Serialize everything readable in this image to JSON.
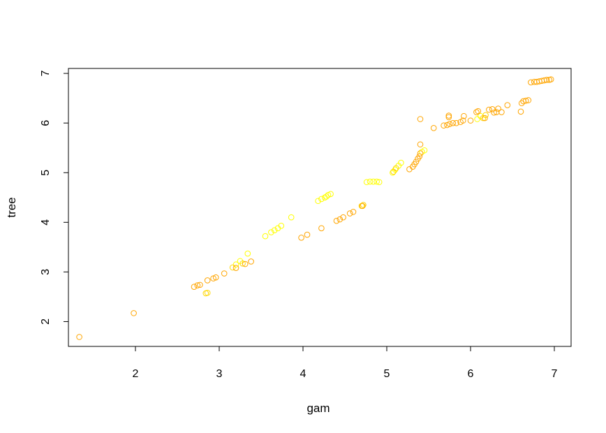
{
  "chart_data": {
    "type": "scatter",
    "title": "",
    "xlabel": "gam",
    "ylabel": "tree",
    "xlim": [
      1.2,
      7.2
    ],
    "ylim": [
      1.5,
      7.1
    ],
    "xticks": [
      "2",
      "3",
      "4",
      "5",
      "6",
      "7"
    ],
    "yticks": [
      "2",
      "3",
      "4",
      "5",
      "6",
      "7"
    ],
    "grid": false,
    "legend": "none",
    "colors": {
      "yellow": "#ffff00",
      "gold": "#ffd700",
      "orange": "#ffa500",
      "dark_orange": "#ff8c00",
      "axis": "#000000"
    },
    "series": [
      {
        "color_key": "yellow",
        "points": [
          [
            3.55,
            3.72
          ],
          [
            3.62,
            3.8
          ],
          [
            3.66,
            3.84
          ],
          [
            3.7,
            3.88
          ],
          [
            3.74,
            3.93
          ],
          [
            3.86,
            4.1
          ],
          [
            3.2,
            3.15
          ],
          [
            3.25,
            3.22
          ],
          [
            3.34,
            3.37
          ],
          [
            4.18,
            4.43
          ],
          [
            4.22,
            4.47
          ],
          [
            4.26,
            4.5
          ],
          [
            4.28,
            4.52
          ],
          [
            4.3,
            4.55
          ],
          [
            4.33,
            4.57
          ],
          [
            4.76,
            4.81
          ],
          [
            4.8,
            4.82
          ],
          [
            4.84,
            4.82
          ],
          [
            4.88,
            4.82
          ],
          [
            4.91,
            4.81
          ],
          [
            5.07,
            5.0
          ],
          [
            5.1,
            5.06
          ],
          [
            5.14,
            5.14
          ],
          [
            5.17,
            5.2
          ],
          [
            5.42,
            5.42
          ],
          [
            5.45,
            5.45
          ],
          [
            6.08,
            6.08
          ],
          [
            6.12,
            6.14
          ]
        ]
      },
      {
        "color_key": "gold",
        "points": [
          [
            2.84,
            2.57
          ],
          [
            2.86,
            2.58
          ],
          [
            3.16,
            3.09
          ],
          [
            3.28,
            3.17
          ],
          [
            4.7,
            4.33
          ],
          [
            4.72,
            4.35
          ],
          [
            5.08,
            5.02
          ],
          [
            5.11,
            5.09
          ],
          [
            6.15,
            6.1
          ],
          [
            6.18,
            6.16
          ]
        ]
      },
      {
        "color_key": "orange",
        "points": [
          [
            1.33,
            1.69
          ],
          [
            1.98,
            2.17
          ],
          [
            2.7,
            2.7
          ],
          [
            2.74,
            2.73
          ],
          [
            2.77,
            2.74
          ],
          [
            2.86,
            2.83
          ],
          [
            2.93,
            2.87
          ],
          [
            2.96,
            2.89
          ],
          [
            3.06,
            2.97
          ],
          [
            3.2,
            3.08
          ],
          [
            3.31,
            3.16
          ],
          [
            3.38,
            3.21
          ],
          [
            3.98,
            3.69
          ],
          [
            4.05,
            3.75
          ],
          [
            4.22,
            3.88
          ],
          [
            4.4,
            4.03
          ],
          [
            4.44,
            4.06
          ],
          [
            4.48,
            4.1
          ],
          [
            4.56,
            4.18
          ],
          [
            4.6,
            4.21
          ],
          [
            4.71,
            4.33
          ],
          [
            5.27,
            5.07
          ],
          [
            5.31,
            5.12
          ],
          [
            5.33,
            5.17
          ],
          [
            5.35,
            5.22
          ],
          [
            5.37,
            5.28
          ],
          [
            5.39,
            5.33
          ],
          [
            5.4,
            5.39
          ],
          [
            5.4,
            5.57
          ],
          [
            5.4,
            6.08
          ],
          [
            5.56,
            5.9
          ],
          [
            5.68,
            5.95
          ],
          [
            5.72,
            5.96
          ],
          [
            5.75,
            5.98
          ],
          [
            5.79,
            6.0
          ],
          [
            5.83,
            6.0
          ],
          [
            5.88,
            6.02
          ],
          [
            5.91,
            6.05
          ],
          [
            5.92,
            6.14
          ],
          [
            5.74,
            6.12
          ],
          [
            5.74,
            6.15
          ],
          [
            6.0,
            6.05
          ],
          [
            6.07,
            6.22
          ],
          [
            6.09,
            6.24
          ],
          [
            6.17,
            6.1
          ],
          [
            6.22,
            6.27
          ],
          [
            6.26,
            6.28
          ],
          [
            6.28,
            6.21
          ],
          [
            6.31,
            6.22
          ],
          [
            6.33,
            6.29
          ],
          [
            6.37,
            6.22
          ],
          [
            6.44,
            6.36
          ],
          [
            6.6,
            6.23
          ],
          [
            6.61,
            6.4
          ],
          [
            6.63,
            6.44
          ],
          [
            6.66,
            6.45
          ],
          [
            6.69,
            6.46
          ],
          [
            6.72,
            6.82
          ],
          [
            6.76,
            6.83
          ],
          [
            6.79,
            6.83
          ],
          [
            6.82,
            6.84
          ],
          [
            6.85,
            6.85
          ],
          [
            6.88,
            6.86
          ],
          [
            6.91,
            6.87
          ],
          [
            6.94,
            6.87
          ],
          [
            6.96,
            6.88
          ]
        ]
      }
    ]
  }
}
